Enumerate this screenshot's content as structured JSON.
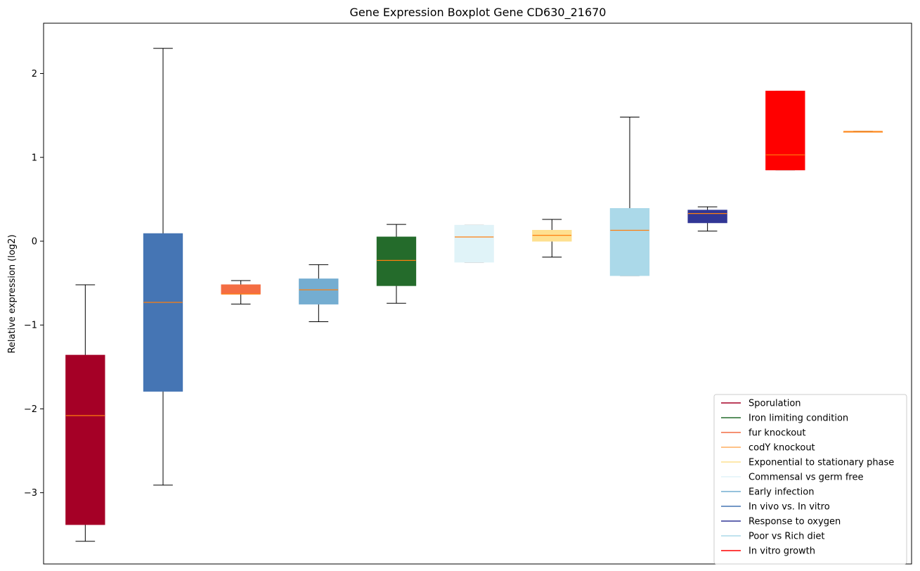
{
  "chart_data": {
    "type": "boxplot",
    "title": "Gene Expression Boxplot Gene CD630_21670",
    "xlabel": "",
    "ylabel": "Relative expression (log2)",
    "ylim": [
      -3.85,
      2.6
    ],
    "yticks": [
      -3,
      -2,
      -1,
      0,
      1,
      2
    ],
    "ytick_labels": [
      "−3",
      "−2",
      "−1",
      "0",
      "1",
      "2"
    ],
    "median_color": "#ff7f0e",
    "boxes": [
      {
        "condition": "Sporulation",
        "color": "#a50026",
        "whislo": -3.58,
        "q1": -3.38,
        "med": -2.08,
        "q3": -1.36,
        "whishi": -0.52
      },
      {
        "condition": "In vivo vs. In vitro",
        "color": "#4575b4",
        "whislo": -2.91,
        "q1": -1.79,
        "med": -0.73,
        "q3": 0.09,
        "whishi": 2.3
      },
      {
        "condition": "fur knockout",
        "color": "#f46d43",
        "whislo": -0.75,
        "q1": -0.63,
        "med": -0.63,
        "q3": -0.52,
        "whishi": -0.47
      },
      {
        "condition": "Early infection",
        "color": "#74add1",
        "whislo": -0.96,
        "q1": -0.75,
        "med": -0.58,
        "q3": -0.45,
        "whishi": -0.28
      },
      {
        "condition": "Iron limiting condition",
        "color": "#246b2b",
        "whislo": -0.74,
        "q1": -0.53,
        "med": -0.23,
        "q3": 0.05,
        "whishi": 0.2
      },
      {
        "condition": "Commensal vs germ free",
        "color": "#e0f3f8",
        "whislo": -0.25,
        "q1": -0.25,
        "med": 0.05,
        "q3": 0.19,
        "whishi": 0.19
      },
      {
        "condition": "Exponential to stationary phase",
        "color": "#fee090",
        "whislo": -0.19,
        "q1": 0.0,
        "med": 0.07,
        "q3": 0.13,
        "whishi": 0.26
      },
      {
        "condition": "Poor vs Rich diet",
        "color": "#abd9e9",
        "whislo": -0.41,
        "q1": -0.41,
        "med": 0.13,
        "q3": 0.39,
        "whishi": 1.48
      },
      {
        "condition": "Response to oxygen",
        "color": "#313695",
        "whislo": 0.12,
        "q1": 0.22,
        "med": 0.33,
        "q3": 0.37,
        "whishi": 0.41
      },
      {
        "condition": "In vitro growth",
        "color": "#ff0000",
        "whislo": 0.85,
        "q1": 0.85,
        "med": 1.03,
        "q3": 1.79,
        "whishi": 1.79
      },
      {
        "condition": "codY knockout",
        "color": "#fdae61",
        "whislo": 1.31,
        "q1": 1.31,
        "med": 1.31,
        "q3": 1.31,
        "whishi": 1.31
      }
    ],
    "legend": {
      "placement": "lower-right",
      "entries": [
        {
          "label": "Sporulation",
          "color": "#a50026"
        },
        {
          "label": "Iron limiting condition",
          "color": "#246b2b"
        },
        {
          "label": "fur knockout",
          "color": "#f46d43"
        },
        {
          "label": "codY knockout",
          "color": "#fdae61"
        },
        {
          "label": "Exponential to stationary phase",
          "color": "#fee090"
        },
        {
          "label": "Commensal vs germ free",
          "color": "#e0f3f8"
        },
        {
          "label": "Early infection",
          "color": "#74add1"
        },
        {
          "label": "In vivo vs. In vitro",
          "color": "#4575b4"
        },
        {
          "label": "Response to oxygen",
          "color": "#313695"
        },
        {
          "label": "Poor vs Rich diet",
          "color": "#abd9e9"
        },
        {
          "label": "In vitro growth",
          "color": "#ff0000"
        }
      ]
    }
  }
}
